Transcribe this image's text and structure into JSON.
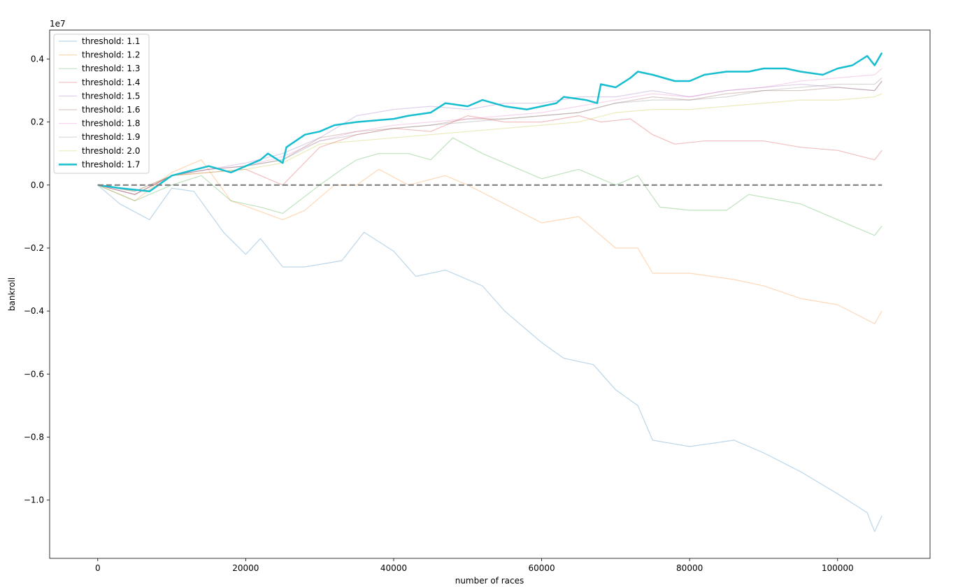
{
  "chart_data": {
    "type": "line",
    "title": "",
    "xlabel": "number of races",
    "ylabel": "bankroll",
    "y_scale_label": "1e7",
    "xlim": [
      -6500,
      112500
    ],
    "ylim": [
      -1.185,
      0.492
    ],
    "x_ticks": [
      0,
      20000,
      40000,
      60000,
      80000,
      100000
    ],
    "x_tick_labels": [
      "0",
      "20000",
      "40000",
      "60000",
      "80000",
      "100000"
    ],
    "y_ticks": [
      0.4,
      0.2,
      0.0,
      -0.2,
      -0.4,
      -0.6,
      -0.8,
      -1.0
    ],
    "y_tick_labels": [
      "0.4",
      "0.2",
      "0.0",
      "−0.2",
      "−0.4",
      "−0.6",
      "−0.8",
      "−1.0"
    ],
    "grid": false,
    "legend_position": "upper-left",
    "reference_line": {
      "y": 0,
      "style": "dashed",
      "color": "#7f7f7f"
    },
    "series": [
      {
        "name": "threshold: 1.1",
        "color": "#1f77b4",
        "opacity": 0.3,
        "width": 1.2,
        "x": [
          0,
          3000,
          7000,
          10000,
          13000,
          17000,
          20000,
          22000,
          25000,
          28000,
          33000,
          36000,
          40000,
          43000,
          47000,
          52000,
          55000,
          60000,
          63000,
          67000,
          70000,
          73000,
          75000,
          80000,
          86000,
          90000,
          95000,
          100000,
          104000,
          105000,
          106000
        ],
        "y": [
          0.0,
          -0.06,
          -0.11,
          -0.01,
          -0.02,
          -0.15,
          -0.22,
          -0.17,
          -0.26,
          -0.26,
          -0.24,
          -0.15,
          -0.21,
          -0.29,
          -0.27,
          -0.32,
          -0.4,
          -0.5,
          -0.55,
          -0.57,
          -0.65,
          -0.7,
          -0.81,
          -0.83,
          -0.81,
          -0.85,
          -0.91,
          -0.98,
          -1.04,
          -1.1,
          -1.05
        ]
      },
      {
        "name": "threshold: 1.2",
        "color": "#ff7f0e",
        "opacity": 0.3,
        "width": 1.2,
        "x": [
          0,
          5000,
          10000,
          14000,
          18000,
          25000,
          28000,
          32000,
          35000,
          38000,
          42000,
          47000,
          50000,
          55000,
          60000,
          65000,
          70000,
          73000,
          75000,
          80000,
          86000,
          90000,
          95000,
          100000,
          105000,
          106000
        ],
        "y": [
          0.0,
          -0.05,
          0.04,
          0.08,
          -0.05,
          -0.11,
          -0.08,
          0.0,
          0.0,
          0.05,
          0.0,
          0.03,
          0.0,
          -0.06,
          -0.12,
          -0.1,
          -0.2,
          -0.2,
          -0.28,
          -0.28,
          -0.3,
          -0.32,
          -0.36,
          -0.38,
          -0.44,
          -0.4
        ]
      },
      {
        "name": "threshold: 1.3",
        "color": "#2ca02c",
        "opacity": 0.3,
        "width": 1.2,
        "x": [
          0,
          5000,
          10000,
          14000,
          18000,
          22000,
          25000,
          30000,
          33000,
          35000,
          38000,
          42000,
          45000,
          48000,
          52000,
          57000,
          60000,
          65000,
          70000,
          73000,
          76000,
          80000,
          85000,
          88000,
          95000,
          100000,
          105000,
          106000
        ],
        "y": [
          0.0,
          -0.05,
          0.0,
          0.03,
          -0.05,
          -0.07,
          -0.09,
          0.0,
          0.05,
          0.08,
          0.1,
          0.1,
          0.08,
          0.15,
          0.1,
          0.05,
          0.02,
          0.05,
          0.0,
          0.03,
          -0.07,
          -0.08,
          -0.08,
          -0.03,
          -0.06,
          -0.11,
          -0.16,
          -0.13
        ]
      },
      {
        "name": "threshold: 1.4",
        "color": "#d62728",
        "opacity": 0.3,
        "width": 1.2,
        "x": [
          0,
          5000,
          10000,
          15000,
          20000,
          25000,
          30000,
          35000,
          40000,
          45000,
          50000,
          55000,
          60000,
          65000,
          68000,
          72000,
          75000,
          78000,
          82000,
          86000,
          90000,
          95000,
          100000,
          105000,
          106000
        ],
        "y": [
          0.0,
          -0.03,
          0.03,
          0.04,
          0.05,
          0.0,
          0.12,
          0.16,
          0.18,
          0.17,
          0.22,
          0.2,
          0.2,
          0.22,
          0.2,
          0.21,
          0.16,
          0.13,
          0.14,
          0.14,
          0.14,
          0.12,
          0.11,
          0.08,
          0.11
        ]
      },
      {
        "name": "threshold: 1.5",
        "color": "#9467bd",
        "opacity": 0.3,
        "width": 1.2,
        "x": [
          0,
          5000,
          10000,
          15000,
          20000,
          25000,
          30000,
          35000,
          40000,
          45000,
          50000,
          55000,
          60000,
          65000,
          70000,
          75000,
          80000,
          85000,
          90000,
          95000,
          100000,
          105000,
          106000
        ],
        "y": [
          0.0,
          -0.03,
          0.03,
          0.05,
          0.07,
          0.1,
          0.15,
          0.22,
          0.24,
          0.25,
          0.24,
          0.26,
          0.26,
          0.28,
          0.28,
          0.3,
          0.28,
          0.3,
          0.31,
          0.32,
          0.31,
          0.3,
          0.33
        ]
      },
      {
        "name": "threshold: 1.6",
        "color": "#8c564b",
        "opacity": 0.3,
        "width": 1.2,
        "x": [
          0,
          5000,
          10000,
          15000,
          20000,
          25000,
          30000,
          35000,
          40000,
          45000,
          50000,
          55000,
          60000,
          65000,
          70000,
          75000,
          80000,
          85000,
          90000,
          95000,
          100000,
          105000,
          106000
        ],
        "y": [
          0.0,
          -0.03,
          0.03,
          0.05,
          0.06,
          0.08,
          0.15,
          0.17,
          0.18,
          0.19,
          0.21,
          0.21,
          0.22,
          0.23,
          0.26,
          0.28,
          0.27,
          0.29,
          0.3,
          0.3,
          0.31,
          0.3,
          0.33
        ]
      },
      {
        "name": "threshold: 1.8",
        "color": "#e377c2",
        "opacity": 0.3,
        "width": 1.2,
        "x": [
          0,
          5000,
          10000,
          15000,
          20000,
          25000,
          30000,
          35000,
          40000,
          45000,
          50000,
          55000,
          60000,
          65000,
          70000,
          75000,
          80000,
          85000,
          90000,
          95000,
          100000,
          105000,
          106000
        ],
        "y": [
          0.0,
          -0.02,
          0.03,
          0.05,
          0.06,
          0.09,
          0.14,
          0.17,
          0.19,
          0.2,
          0.21,
          0.22,
          0.23,
          0.25,
          0.27,
          0.29,
          0.28,
          0.3,
          0.31,
          0.33,
          0.34,
          0.35,
          0.37
        ]
      },
      {
        "name": "threshold: 1.9",
        "color": "#7f7f7f",
        "opacity": 0.3,
        "width": 1.2,
        "x": [
          0,
          5000,
          10000,
          15000,
          20000,
          25000,
          30000,
          35000,
          40000,
          45000,
          50000,
          55000,
          60000,
          65000,
          70000,
          75000,
          80000,
          85000,
          90000,
          95000,
          100000,
          105000,
          106000
        ],
        "y": [
          0.0,
          -0.02,
          0.03,
          0.05,
          0.06,
          0.08,
          0.14,
          0.16,
          0.18,
          0.19,
          0.2,
          0.21,
          0.22,
          0.23,
          0.26,
          0.27,
          0.27,
          0.28,
          0.3,
          0.31,
          0.32,
          0.32,
          0.34
        ]
      },
      {
        "name": "threshold: 2.0",
        "color": "#bcbd22",
        "opacity": 0.3,
        "width": 1.2,
        "x": [
          0,
          5000,
          10000,
          15000,
          20000,
          25000,
          30000,
          35000,
          40000,
          45000,
          50000,
          55000,
          60000,
          65000,
          70000,
          75000,
          80000,
          85000,
          90000,
          95000,
          100000,
          105000,
          106000
        ],
        "y": [
          0.0,
          -0.02,
          0.03,
          0.04,
          0.05,
          0.07,
          0.13,
          0.14,
          0.15,
          0.16,
          0.17,
          0.18,
          0.19,
          0.2,
          0.23,
          0.24,
          0.24,
          0.25,
          0.26,
          0.27,
          0.27,
          0.28,
          0.29
        ]
      },
      {
        "name": "threshold: 1.7",
        "color": "#17becf",
        "opacity": 1.0,
        "width": 2.5,
        "x": [
          0,
          3000,
          7000,
          10000,
          15000,
          18000,
          20000,
          22000,
          23000,
          25000,
          25500,
          28000,
          30000,
          32000,
          35000,
          40000,
          42000,
          45000,
          47000,
          50000,
          52000,
          55000,
          58000,
          60000,
          62000,
          63000,
          66000,
          67500,
          68000,
          70000,
          72000,
          73000,
          75000,
          78000,
          80000,
          82000,
          85000,
          88000,
          90000,
          93000,
          95000,
          98000,
          100000,
          102000,
          104000,
          105000,
          106000
        ],
        "y": [
          0.0,
          -0.01,
          -0.02,
          0.03,
          0.06,
          0.04,
          0.06,
          0.08,
          0.1,
          0.07,
          0.12,
          0.16,
          0.17,
          0.19,
          0.2,
          0.21,
          0.22,
          0.23,
          0.26,
          0.25,
          0.27,
          0.25,
          0.24,
          0.25,
          0.26,
          0.28,
          0.27,
          0.26,
          0.32,
          0.31,
          0.34,
          0.36,
          0.35,
          0.33,
          0.33,
          0.35,
          0.36,
          0.36,
          0.37,
          0.37,
          0.36,
          0.35,
          0.37,
          0.38,
          0.41,
          0.38,
          0.42
        ]
      }
    ]
  }
}
